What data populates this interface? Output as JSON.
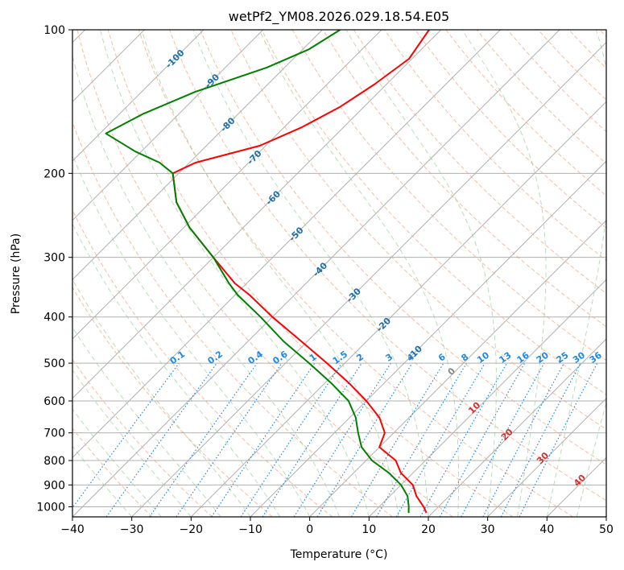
{
  "chart_data": {
    "type": "line",
    "title": "wetPf2_YM08.2026.029.18.54.E05",
    "xlabel": "Temperature (°C)",
    "ylabel": "Pressure (hPa)",
    "xlim": [
      -40,
      50
    ],
    "ylim": [
      1050,
      100
    ],
    "y_scale": "log",
    "skew": 45,
    "x_ticks": [
      -40,
      -30,
      -20,
      -10,
      0,
      10,
      20,
      30,
      40,
      50
    ],
    "x_tick_labels": [
      "−40",
      "−30",
      "−20",
      "−10",
      "0",
      "10",
      "20",
      "30",
      "40",
      "50"
    ],
    "y_ticks": [
      1000,
      900,
      800,
      700,
      600,
      500,
      400,
      300,
      200,
      100
    ],
    "y_tick_labels": [
      "1000",
      "900",
      "800",
      "700",
      "600",
      "500",
      "400",
      "300",
      "200",
      "100"
    ],
    "isotherm_labels": [
      {
        "text": "-100",
        "value": -100,
        "p": 115
      },
      {
        "text": "-90",
        "value": -90,
        "p": 128
      },
      {
        "text": "-80",
        "value": -80,
        "p": 158
      },
      {
        "text": "-70",
        "value": -70,
        "p": 185
      },
      {
        "text": "-60",
        "value": -60,
        "p": 225
      },
      {
        "text": "-50",
        "value": -50,
        "p": 268
      },
      {
        "text": "-40",
        "value": -40,
        "p": 318
      },
      {
        "text": "-30",
        "value": -30,
        "p": 360
      },
      {
        "text": "-20",
        "value": -20,
        "p": 415
      },
      {
        "text": "-10",
        "value": -10,
        "p": 475
      }
    ],
    "isotherm_label_color": "#1f6fa8",
    "mixing_ratio_labels": [
      "0.1",
      "0.2",
      "0.4",
      "0.6",
      "1",
      "1.5",
      "2",
      "3",
      "4",
      "6",
      "8",
      "10",
      "13",
      "16",
      "20",
      "25",
      "30",
      "36"
    ],
    "mixing_ratio_values": [
      0.1,
      0.2,
      0.4,
      0.6,
      1,
      1.5,
      2,
      3,
      4,
      6,
      8,
      10,
      13,
      16,
      20,
      25,
      30,
      36
    ],
    "mixing_ratio_color": "#1e88e5",
    "theta_e_labels": [
      {
        "text": "0",
        "value": 0,
        "p": 520,
        "color": "#888888"
      },
      {
        "text": "10",
        "value": 10,
        "p": 620,
        "color": "#d32f2f"
      },
      {
        "text": "20",
        "value": 20,
        "p": 705,
        "color": "#d32f2f"
      },
      {
        "text": "30",
        "value": 30,
        "p": 790,
        "color": "#d32f2f"
      },
      {
        "text": "40",
        "value": 40,
        "p": 880,
        "color": "#d32f2f"
      }
    ],
    "series": [
      {
        "name": "Temperature",
        "color": "#ff0000",
        "points": [
          [
            100,
            -62
          ],
          [
            115,
            -60.5
          ],
          [
            130,
            -62
          ],
          [
            145,
            -64
          ],
          [
            160,
            -67
          ],
          [
            175,
            -71
          ],
          [
            190,
            -79
          ],
          [
            200,
            -81
          ],
          [
            230,
            -75.5
          ],
          [
            260,
            -69
          ],
          [
            300,
            -60
          ],
          [
            340,
            -52
          ],
          [
            360,
            -47.5
          ],
          [
            400,
            -40
          ],
          [
            450,
            -31
          ],
          [
            500,
            -23
          ],
          [
            550,
            -16
          ],
          [
            600,
            -10
          ],
          [
            650,
            -5
          ],
          [
            700,
            -1.5
          ],
          [
            750,
            0
          ],
          [
            800,
            5
          ],
          [
            850,
            8
          ],
          [
            900,
            12
          ],
          [
            950,
            14.5
          ],
          [
            1000,
            17.5
          ],
          [
            1030,
            19
          ]
        ]
      },
      {
        "name": "Dewpoint",
        "color": "#008000",
        "points": [
          [
            100,
            -77
          ],
          [
            110,
            -79
          ],
          [
            120,
            -83
          ],
          [
            135,
            -91
          ],
          [
            150,
            -96
          ],
          [
            165,
            -99
          ],
          [
            180,
            -91
          ],
          [
            190,
            -85
          ],
          [
            200,
            -81
          ],
          [
            230,
            -75.5
          ],
          [
            260,
            -69
          ],
          [
            300,
            -60
          ],
          [
            340,
            -53
          ],
          [
            360,
            -49.5
          ],
          [
            400,
            -42
          ],
          [
            450,
            -34
          ],
          [
            500,
            -26
          ],
          [
            550,
            -19
          ],
          [
            600,
            -13
          ],
          [
            650,
            -9
          ],
          [
            700,
            -6
          ],
          [
            750,
            -3
          ],
          [
            800,
            1
          ],
          [
            850,
            6
          ],
          [
            900,
            10
          ],
          [
            950,
            13
          ],
          [
            1000,
            15
          ],
          [
            1030,
            16
          ]
        ]
      }
    ]
  }
}
